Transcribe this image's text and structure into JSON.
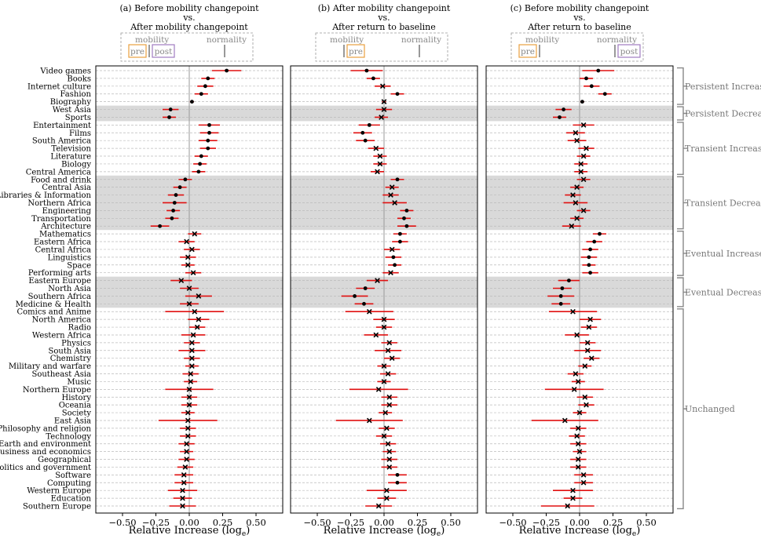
{
  "chart_data": {
    "type": "dot-errorbar",
    "xlabel": "Relative Increase (log",
    "xlabel_sub": "e",
    "xlabel_close": ")",
    "xlim": [
      -0.7,
      0.7
    ],
    "xticks": [
      -0.5,
      -0.25,
      0.0,
      0.25,
      0.5
    ],
    "xtick_labels": [
      "−0.50",
      "−0.25",
      "0.00",
      "0.25",
      "0.50"
    ],
    "categories": [
      "Video games",
      "Books",
      "Internet culture",
      "Fashion",
      "Biography",
      "West Asia",
      "Sports",
      "Entertainment",
      "Films",
      "South America",
      "Television",
      "Literature",
      "Biology",
      "Central America",
      "Food and drink",
      "Central Asia",
      "Libraries & Information",
      "Northern Africa",
      "Engineering",
      "Transportation",
      "Architecture",
      "Mathematics",
      "Eastern Africa",
      "Central Africa",
      "Linguistics",
      "Space",
      "Performing arts",
      "Eastern Europe",
      "North Asia",
      "Southern Africa",
      "Medicine & Health",
      "Comics and Anime",
      "North America",
      "Radio",
      "Western Africa",
      "Physics",
      "South Asia",
      "Chemistry",
      "Military and warfare",
      "Southeast Asia",
      "Music",
      "Northern Europe",
      "History",
      "Oceania",
      "Society",
      "East Asia",
      "Philosophy and religion",
      "Technology",
      "Earth and environment",
      "Business and economics",
      "Geographical",
      "Politics and government",
      "Software",
      "Computing",
      "Western Europe",
      "Education",
      "Southern Europe"
    ],
    "shaded_rows": [
      [
        5,
        6
      ],
      [
        14,
        20
      ],
      [
        27,
        30
      ]
    ],
    "groups": [
      {
        "label": "Persistent Increase",
        "start": 0,
        "end": 4
      },
      {
        "label": "Persistent Decrease",
        "start": 5,
        "end": 6
      },
      {
        "label": "Transient Increase",
        "start": 7,
        "end": 13
      },
      {
        "label": "Transient Decrease",
        "start": 14,
        "end": 20
      },
      {
        "label": "Eventual Increase",
        "start": 21,
        "end": 26
      },
      {
        "label": "Eventual Decrease",
        "start": 27,
        "end": 30
      },
      {
        "label": "Unchanged",
        "start": 31,
        "end": 56
      }
    ],
    "panels": [
      {
        "title_line1": "(a) Before mobility changepoint",
        "title_line2": "vs.",
        "title_line3": "After mobility changepoint",
        "legend": {
          "label_left": "mobility",
          "label_right": "normality",
          "box1": "pre",
          "box1_color": "#e8a040",
          "box2": "post",
          "box2_color": "#a07cc0"
        },
        "values": [
          0.28,
          0.14,
          0.12,
          0.09,
          0.02,
          -0.14,
          -0.15,
          0.15,
          0.15,
          0.14,
          0.14,
          0.09,
          0.08,
          0.07,
          -0.03,
          -0.07,
          -0.1,
          -0.11,
          -0.12,
          -0.13,
          -0.22,
          0.04,
          -0.02,
          0.02,
          -0.01,
          -0.01,
          0.03,
          -0.06,
          0.0,
          0.07,
          0.0,
          0.04,
          0.07,
          0.06,
          0.03,
          0.02,
          0.02,
          0.02,
          0.02,
          0.01,
          0.01,
          0.0,
          0.0,
          0.0,
          -0.01,
          -0.01,
          -0.01,
          -0.01,
          -0.02,
          -0.02,
          -0.02,
          -0.03,
          -0.04,
          -0.04,
          -0.05,
          -0.05,
          -0.05
        ],
        "errors": [
          0.11,
          0.05,
          0.06,
          0.05,
          0.015,
          0.06,
          0.05,
          0.08,
          0.07,
          0.07,
          0.06,
          0.05,
          0.05,
          0.05,
          0.05,
          0.05,
          0.06,
          0.09,
          0.05,
          0.05,
          0.07,
          0.05,
          0.06,
          0.06,
          0.06,
          0.05,
          0.06,
          0.08,
          0.07,
          0.1,
          0.07,
          0.22,
          0.08,
          0.06,
          0.09,
          0.06,
          0.1,
          0.06,
          0.05,
          0.06,
          0.05,
          0.18,
          0.06,
          0.06,
          0.05,
          0.22,
          0.06,
          0.06,
          0.06,
          0.05,
          0.06,
          0.06,
          0.07,
          0.07,
          0.11,
          0.07,
          0.1
        ],
        "markers": [
          "dot",
          "dot",
          "dot",
          "dot",
          "dot",
          "dot",
          "dot",
          "dot",
          "dot",
          "dot",
          "dot",
          "dot",
          "dot",
          "dot",
          "dot",
          "dot",
          "dot",
          "dot",
          "dot",
          "dot",
          "dot",
          "x",
          "x",
          "x",
          "x",
          "x",
          "x",
          "x",
          "x",
          "x",
          "x",
          "x",
          "x",
          "x",
          "x",
          "x",
          "x",
          "x",
          "x",
          "x",
          "x",
          "x",
          "x",
          "x",
          "x",
          "x",
          "x",
          "x",
          "x",
          "x",
          "x",
          "x",
          "x",
          "x",
          "x",
          "x",
          "x"
        ]
      },
      {
        "title_line1": "(b) After mobility changepoint",
        "title_line2": "vs.",
        "title_line3": "After return to baseline",
        "legend": {
          "label_left": "mobility",
          "label_right": "normality",
          "box1": "pre",
          "box1_color": "#e8a040",
          "box2": "",
          "box2_color": "#a07cc0"
        },
        "values": [
          -0.13,
          -0.08,
          -0.01,
          0.1,
          0.0,
          0.0,
          -0.02,
          -0.11,
          -0.16,
          -0.14,
          -0.06,
          -0.03,
          -0.03,
          -0.05,
          0.1,
          0.06,
          0.05,
          0.08,
          0.17,
          0.15,
          0.17,
          0.12,
          0.12,
          0.06,
          0.07,
          0.08,
          0.05,
          -0.05,
          -0.14,
          -0.22,
          -0.15,
          -0.11,
          0.0,
          0.0,
          -0.06,
          0.04,
          0.03,
          0.06,
          0.0,
          0.03,
          0.0,
          -0.04,
          0.04,
          0.04,
          0.01,
          -0.11,
          0.02,
          0.0,
          0.03,
          0.04,
          0.04,
          0.04,
          0.1,
          0.1,
          0.02,
          0.02,
          -0.04
        ],
        "errors": [
          0.12,
          0.05,
          0.06,
          0.05,
          0.015,
          0.06,
          0.05,
          0.08,
          0.07,
          0.07,
          0.06,
          0.05,
          0.05,
          0.05,
          0.05,
          0.05,
          0.06,
          0.09,
          0.05,
          0.05,
          0.07,
          0.05,
          0.06,
          0.06,
          0.06,
          0.05,
          0.06,
          0.08,
          0.07,
          0.1,
          0.07,
          0.18,
          0.08,
          0.06,
          0.09,
          0.06,
          0.1,
          0.06,
          0.05,
          0.06,
          0.05,
          0.22,
          0.06,
          0.06,
          0.05,
          0.25,
          0.06,
          0.06,
          0.06,
          0.05,
          0.06,
          0.06,
          0.07,
          0.07,
          0.15,
          0.07,
          0.1
        ],
        "markers": [
          "dot",
          "dot",
          "x",
          "dot",
          "x",
          "x",
          "x",
          "dot",
          "dot",
          "dot",
          "x",
          "x",
          "x",
          "x",
          "dot",
          "x",
          "x",
          "x",
          "dot",
          "dot",
          "dot",
          "dot",
          "dot",
          "x",
          "dot",
          "dot",
          "x",
          "x",
          "dot",
          "dot",
          "dot",
          "x",
          "x",
          "x",
          "x",
          "x",
          "x",
          "x",
          "x",
          "x",
          "x",
          "x",
          "x",
          "x",
          "x",
          "x",
          "x",
          "x",
          "x",
          "x",
          "x",
          "x",
          "dot",
          "dot",
          "x",
          "x",
          "x"
        ]
      },
      {
        "title_line1": "(c) Before mobility changepoint",
        "title_line2": "vs.",
        "title_line3": "After return to baseline",
        "legend": {
          "label_left": "mobility",
          "label_right": "normality",
          "box1": "pre",
          "box1_color": "#e8a040",
          "box2": "post",
          "box2_color": "#a07cc0"
        },
        "values": [
          0.14,
          0.05,
          0.09,
          0.19,
          0.02,
          -0.12,
          -0.15,
          0.03,
          -0.03,
          -0.02,
          0.05,
          0.03,
          0.01,
          0.01,
          0.03,
          -0.02,
          -0.05,
          -0.03,
          0.03,
          -0.02,
          -0.06,
          0.15,
          0.11,
          0.08,
          0.07,
          0.07,
          0.08,
          -0.08,
          -0.13,
          -0.14,
          -0.14,
          -0.05,
          0.08,
          0.07,
          -0.02,
          0.06,
          0.06,
          0.09,
          0.04,
          -0.03,
          -0.01,
          -0.04,
          0.04,
          0.05,
          0.0,
          -0.11,
          -0.01,
          -0.02,
          -0.01,
          0.0,
          -0.01,
          -0.01,
          0.03,
          0.03,
          -0.05,
          -0.05,
          -0.09
        ],
        "errors": [
          0.12,
          0.05,
          0.06,
          0.05,
          0.015,
          0.06,
          0.05,
          0.08,
          0.07,
          0.07,
          0.06,
          0.05,
          0.05,
          0.05,
          0.05,
          0.05,
          0.06,
          0.09,
          0.05,
          0.05,
          0.07,
          0.05,
          0.06,
          0.06,
          0.06,
          0.05,
          0.06,
          0.08,
          0.07,
          0.1,
          0.07,
          0.18,
          0.08,
          0.06,
          0.09,
          0.06,
          0.1,
          0.06,
          0.05,
          0.06,
          0.05,
          0.22,
          0.06,
          0.06,
          0.05,
          0.25,
          0.06,
          0.06,
          0.06,
          0.05,
          0.06,
          0.06,
          0.07,
          0.07,
          0.15,
          0.07,
          0.2
        ],
        "markers": [
          "dot",
          "dot",
          "dot",
          "dot",
          "dot",
          "dot",
          "dot",
          "x",
          "x",
          "x",
          "x",
          "x",
          "x",
          "x",
          "x",
          "x",
          "x",
          "x",
          "x",
          "x",
          "x",
          "dot",
          "dot",
          "dot",
          "dot",
          "dot",
          "dot",
          "dot",
          "dot",
          "dot",
          "dot",
          "x",
          "x",
          "x",
          "x",
          "x",
          "x",
          "x",
          "x",
          "x",
          "x",
          "x",
          "x",
          "x",
          "x",
          "x",
          "x",
          "x",
          "x",
          "x",
          "x",
          "x",
          "x",
          "x",
          "x",
          "x",
          "x"
        ]
      }
    ],
    "colors": {
      "errorbar": "#e01010",
      "marker": "#000000",
      "shade": "#d9d9d9",
      "zero_line": "#999999",
      "bracket": "#888888",
      "grid": "#bbbbbb"
    }
  }
}
